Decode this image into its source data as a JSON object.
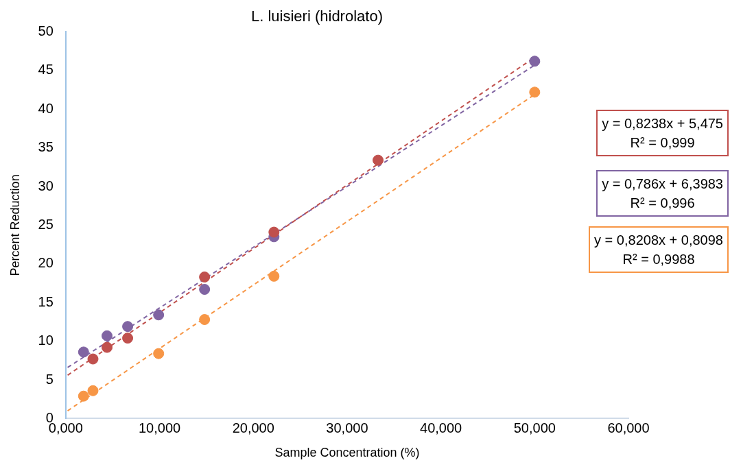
{
  "chart_data": {
    "type": "scatter",
    "title": "L. luisieri (hidrolato)",
    "xlabel": "Sample Concentration (%)",
    "ylabel": "Percent Reduction",
    "xlim": [
      0,
      60
    ],
    "xticks": [
      {
        "value": 0,
        "label": "0,000"
      },
      {
        "value": 10,
        "label": "10,000"
      },
      {
        "value": 20,
        "label": "20,000"
      },
      {
        "value": 30,
        "label": "30,000"
      },
      {
        "value": 40,
        "label": "40,000"
      },
      {
        "value": 50,
        "label": "50,000"
      },
      {
        "value": 60,
        "label": "60,000"
      }
    ],
    "ylim": [
      0,
      50
    ],
    "yticks": [
      0,
      5,
      10,
      15,
      20,
      25,
      30,
      35,
      40,
      45,
      50
    ],
    "marker": "circle",
    "series": [
      {
        "type": "scatter",
        "color": "#c0504d",
        "x": [
          2.9,
          4.4,
          6.6,
          14.8,
          22.2,
          33.3
        ],
        "values": [
          7.7,
          9.2,
          10.4,
          18.3,
          24.1,
          33.4
        ]
      },
      {
        "type": "scatter",
        "color": "#8064a2",
        "x": [
          1.9,
          4.4,
          6.6,
          9.9,
          14.8,
          22.2,
          50
        ],
        "values": [
          8.6,
          10.7,
          11.9,
          13.4,
          16.7,
          23.5,
          46.2
        ]
      },
      {
        "type": "scatter",
        "color": "#f79646",
        "x": [
          1.9,
          2.9,
          9.9,
          14.8,
          22.2,
          50
        ],
        "values": [
          2.9,
          3.6,
          8.4,
          12.8,
          18.4,
          42.2
        ]
      },
      {
        "type": "line",
        "marker": "none",
        "line_style": "dashed",
        "color": "#c0504d",
        "x": [
          0.2,
          50
        ],
        "values": [
          5.6,
          46.7
        ]
      },
      {
        "type": "line",
        "marker": "none",
        "line_style": "dashed",
        "color": "#8064a2",
        "x": [
          0.2,
          50
        ],
        "values": [
          6.6,
          45.7
        ]
      },
      {
        "type": "line",
        "marker": "none",
        "line_style": "dashed",
        "color": "#f79646",
        "x": [
          0.2,
          50
        ],
        "values": [
          1.0,
          41.9
        ]
      }
    ],
    "annotations": [
      "y = 0,8238x + 5,475\nR² = 0,999",
      "y = 0,786x + 6,3983\nR² = 0,996",
      "y = 0,8208x + 0,8098\nR² = 0,9988"
    ]
  }
}
